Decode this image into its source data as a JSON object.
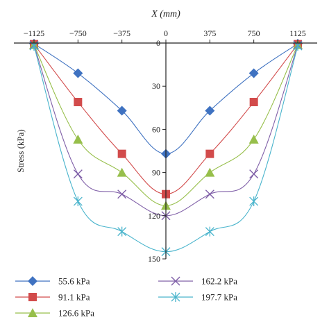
{
  "chart_data": {
    "type": "line",
    "xlabel": "X (mm)",
    "ylabel": "Stress (kPa)",
    "xlim": [
      -1125,
      1125
    ],
    "ylim": [
      0,
      150
    ],
    "y_inverted": true,
    "x_axis_position": "top",
    "x_ticks": [
      -1125,
      -750,
      -375,
      0,
      375,
      750,
      1125
    ],
    "y_ticks": [
      0,
      30,
      60,
      90,
      120,
      150
    ],
    "x_tick_labels": [
      "−1125",
      "−750",
      "−375",
      "0",
      "375",
      "750",
      "1125"
    ],
    "y_tick_labels": [
      "0",
      "30",
      "60",
      "90",
      "120",
      "150"
    ],
    "x": [
      -1125,
      -750,
      -375,
      0,
      375,
      750,
      1125
    ],
    "legend_position": "bottom",
    "series": [
      {
        "name": "55.6 kPa",
        "marker": "diamond",
        "color": "#3f72c1",
        "values": [
          0.5,
          21,
          47,
          77,
          47,
          21,
          0.5
        ]
      },
      {
        "name": "91.1 kPa",
        "marker": "square",
        "color": "#d24b4b",
        "values": [
          0.8,
          41,
          77,
          105,
          77,
          41,
          0.8
        ]
      },
      {
        "name": "126.6 kPa",
        "marker": "triangle",
        "color": "#97bf4b",
        "values": [
          1.2,
          67,
          90,
          113,
          90,
          67,
          1.2
        ]
      },
      {
        "name": "162.2 kPa",
        "marker": "x",
        "color": "#8060a8",
        "values": [
          1.5,
          91,
          105,
          120,
          105,
          91,
          1.5
        ]
      },
      {
        "name": "197.7 kPa",
        "marker": "star",
        "color": "#49b4cc",
        "values": [
          2,
          110,
          131,
          145,
          131,
          110,
          2
        ]
      }
    ]
  }
}
